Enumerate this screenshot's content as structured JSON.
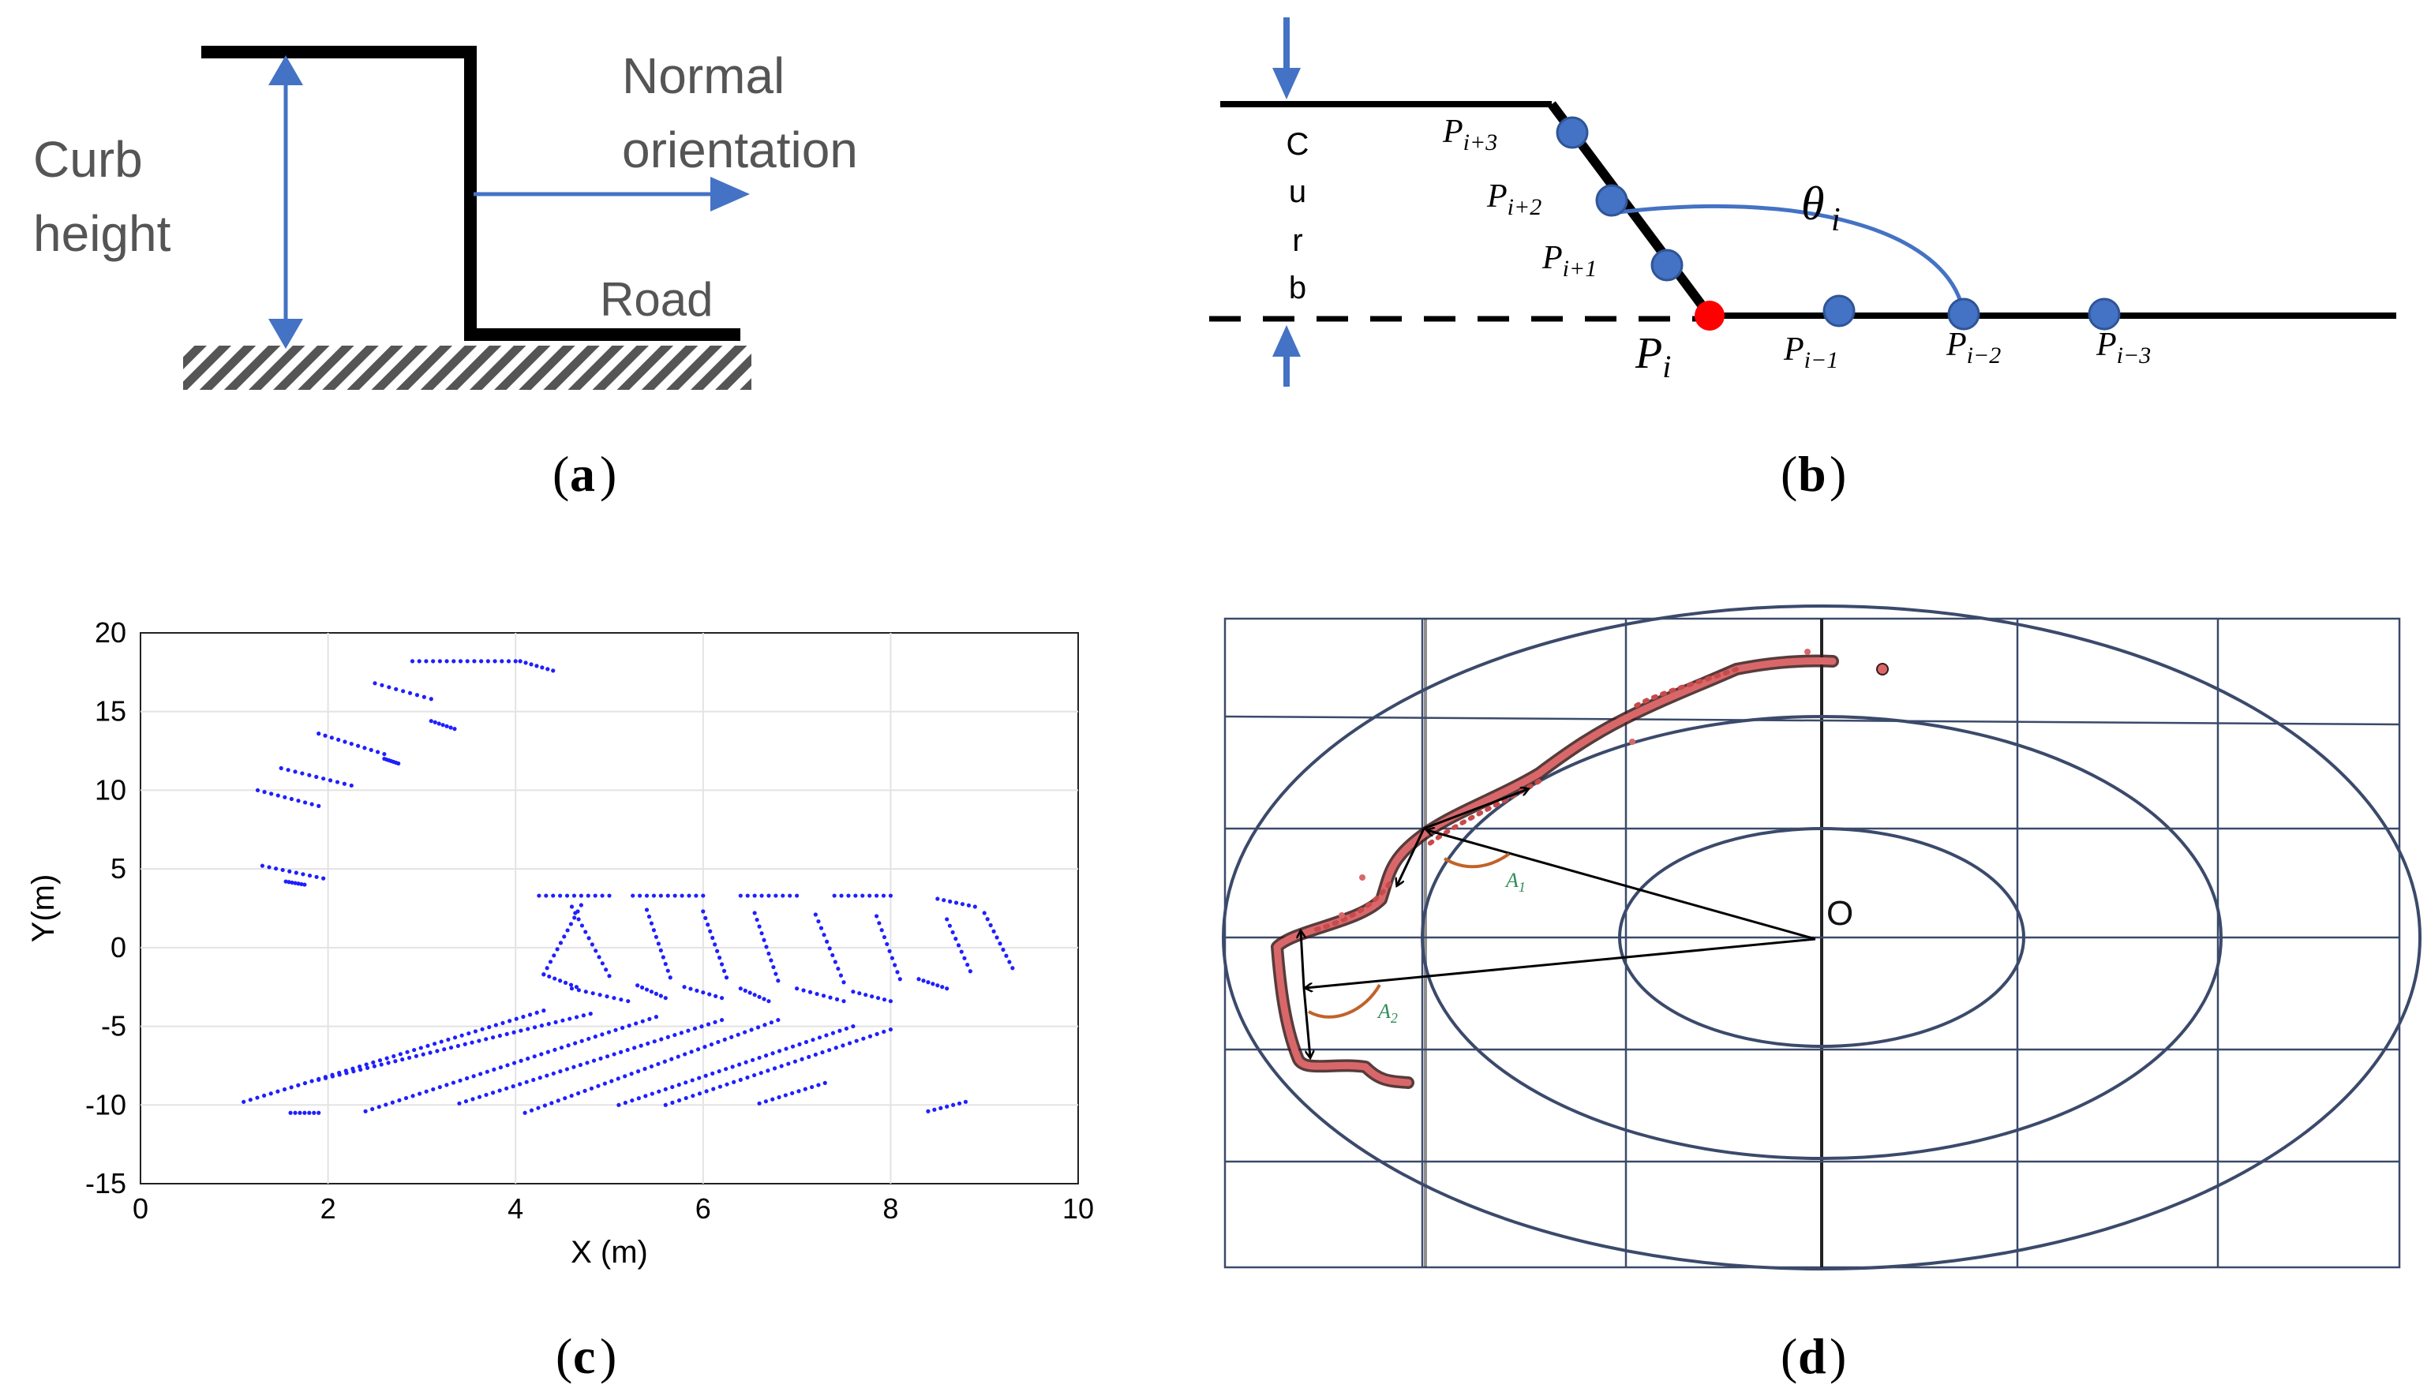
{
  "colors": {
    "accent": "#4472C4",
    "ink": "#000000",
    "gray": "#555555",
    "red": "#ff0000",
    "blue_dots": "#1f1fff",
    "curb_points": "#c84a4a",
    "rings": "#3b4a6b"
  },
  "panel_a": {
    "caption_letter": "a",
    "label_curb": "Curb",
    "label_height": "height",
    "label_normal": "Normal",
    "label_orientation": "orientation",
    "label_road": "Road"
  },
  "panel_b": {
    "caption_letter": "b",
    "curb_letters": [
      "C",
      "u",
      "r",
      "b"
    ],
    "theta_label": "θ",
    "theta_sub": "i",
    "points": [
      {
        "base": "P",
        "sub": "i+3"
      },
      {
        "base": "P",
        "sub": "i+2"
      },
      {
        "base": "P",
        "sub": "i+1"
      },
      {
        "base": "P",
        "sub": "i"
      },
      {
        "base": "P",
        "sub": "i−1"
      },
      {
        "base": "P",
        "sub": "i−2"
      },
      {
        "base": "P",
        "sub": "i−3"
      }
    ]
  },
  "panel_c": {
    "caption_letter": "c",
    "chart_data": {
      "type": "scatter",
      "title": "",
      "xlabel": "X (m)",
      "ylabel": "Y(m)",
      "xlim": [
        0,
        10
      ],
      "ylim": [
        -15,
        20
      ],
      "xticks": [
        "0",
        "2",
        "4",
        "6",
        "8",
        "10"
      ],
      "yticks": [
        "-15",
        "-10",
        "-5",
        "0",
        "5",
        "10",
        "15",
        "20"
      ],
      "grid": true,
      "segments": [
        {
          "x": [
            2.9,
            4.0
          ],
          "y": [
            18.2,
            18.2
          ]
        },
        {
          "x": [
            4.05,
            4.4
          ],
          "y": [
            18.2,
            17.6
          ]
        },
        {
          "x": [
            2.5,
            3.1
          ],
          "y": [
            16.8,
            15.8
          ]
        },
        {
          "x": [
            3.1,
            3.35
          ],
          "y": [
            14.4,
            13.9
          ]
        },
        {
          "x": [
            1.9,
            2.6
          ],
          "y": [
            13.6,
            12.3
          ]
        },
        {
          "x": [
            2.6,
            2.75
          ],
          "y": [
            12.0,
            11.7
          ]
        },
        {
          "x": [
            1.5,
            2.25
          ],
          "y": [
            11.4,
            10.3
          ]
        },
        {
          "x": [
            1.25,
            1.9
          ],
          "y": [
            10.0,
            9.0
          ]
        },
        {
          "x": [
            1.3,
            1.95
          ],
          "y": [
            5.2,
            4.4
          ]
        },
        {
          "x": [
            1.55,
            1.75
          ],
          "y": [
            4.2,
            4.0
          ]
        },
        {
          "x": [
            4.25,
            5.0
          ],
          "y": [
            3.3,
            3.3
          ]
        },
        {
          "x": [
            5.25,
            6.0
          ],
          "y": [
            3.3,
            3.3
          ]
        },
        {
          "x": [
            6.4,
            7.0
          ],
          "y": [
            3.3,
            3.3
          ]
        },
        {
          "x": [
            7.4,
            8.0
          ],
          "y": [
            3.3,
            3.3
          ]
        },
        {
          "x": [
            8.5,
            8.9
          ],
          "y": [
            3.1,
            2.6
          ]
        },
        {
          "x": [
            4.6,
            5.0
          ],
          "y": [
            2.6,
            -1.8
          ]
        },
        {
          "x": [
            5.4,
            5.65
          ],
          "y": [
            2.4,
            -1.9
          ]
        },
        {
          "x": [
            6.0,
            6.25
          ],
          "y": [
            2.3,
            -1.9
          ]
        },
        {
          "x": [
            6.55,
            6.8
          ],
          "y": [
            2.2,
            -2.1
          ]
        },
        {
          "x": [
            7.2,
            7.5
          ],
          "y": [
            2.1,
            -2.2
          ]
        },
        {
          "x": [
            7.85,
            8.1
          ],
          "y": [
            2.0,
            -2.0
          ]
        },
        {
          "x": [
            8.6,
            8.85
          ],
          "y": [
            1.8,
            -1.5
          ]
        },
        {
          "x": [
            9.0,
            9.3
          ],
          "y": [
            2.2,
            -1.3
          ]
        },
        {
          "x": [
            4.3,
            4.65
          ],
          "y": [
            -1.7,
            -2.5
          ]
        },
        {
          "x": [
            4.6,
            5.2
          ],
          "y": [
            -2.6,
            -3.4
          ]
        },
        {
          "x": [
            5.3,
            5.6
          ],
          "y": [
            -2.4,
            -3.2
          ]
        },
        {
          "x": [
            5.8,
            6.2
          ],
          "y": [
            -2.5,
            -3.2
          ]
        },
        {
          "x": [
            6.4,
            6.7
          ],
          "y": [
            -2.6,
            -3.4
          ]
        },
        {
          "x": [
            7.0,
            7.5
          ],
          "y": [
            -2.6,
            -3.4
          ]
        },
        {
          "x": [
            7.6,
            8.0
          ],
          "y": [
            -2.8,
            -3.4
          ]
        },
        {
          "x": [
            8.3,
            8.6
          ],
          "y": [
            -2.0,
            -2.6
          ]
        },
        {
          "x": [
            1.1,
            4.3
          ],
          "y": [
            -9.8,
            -4.0
          ]
        },
        {
          "x": [
            1.6,
            1.9
          ],
          "y": [
            -10.5,
            -10.5
          ]
        },
        {
          "x": [
            1.9,
            4.8
          ],
          "y": [
            -8.4,
            -4.2
          ]
        },
        {
          "x": [
            2.4,
            5.5
          ],
          "y": [
            -10.4,
            -4.4
          ]
        },
        {
          "x": [
            3.4,
            6.2
          ],
          "y": [
            -9.9,
            -4.6
          ]
        },
        {
          "x": [
            4.1,
            6.8
          ],
          "y": [
            -10.5,
            -4.6
          ]
        },
        {
          "x": [
            5.1,
            7.6
          ],
          "y": [
            -10.0,
            -5.0
          ]
        },
        {
          "x": [
            5.6,
            8.0
          ],
          "y": [
            -10.0,
            -5.2
          ]
        },
        {
          "x": [
            6.6,
            7.3
          ],
          "y": [
            -9.9,
            -8.6
          ]
        },
        {
          "x": [
            8.4,
            8.8
          ],
          "y": [
            -10.4,
            -9.8
          ]
        },
        {
          "x": [
            4.3,
            4.7
          ],
          "y": [
            -1.7,
            2.7
          ]
        }
      ]
    }
  },
  "panel_d": {
    "caption_letter": "d",
    "origin_label": "O",
    "angle1_label": "A",
    "angle1_sub": "1",
    "angle2_label": "A",
    "angle2_sub": "2"
  }
}
